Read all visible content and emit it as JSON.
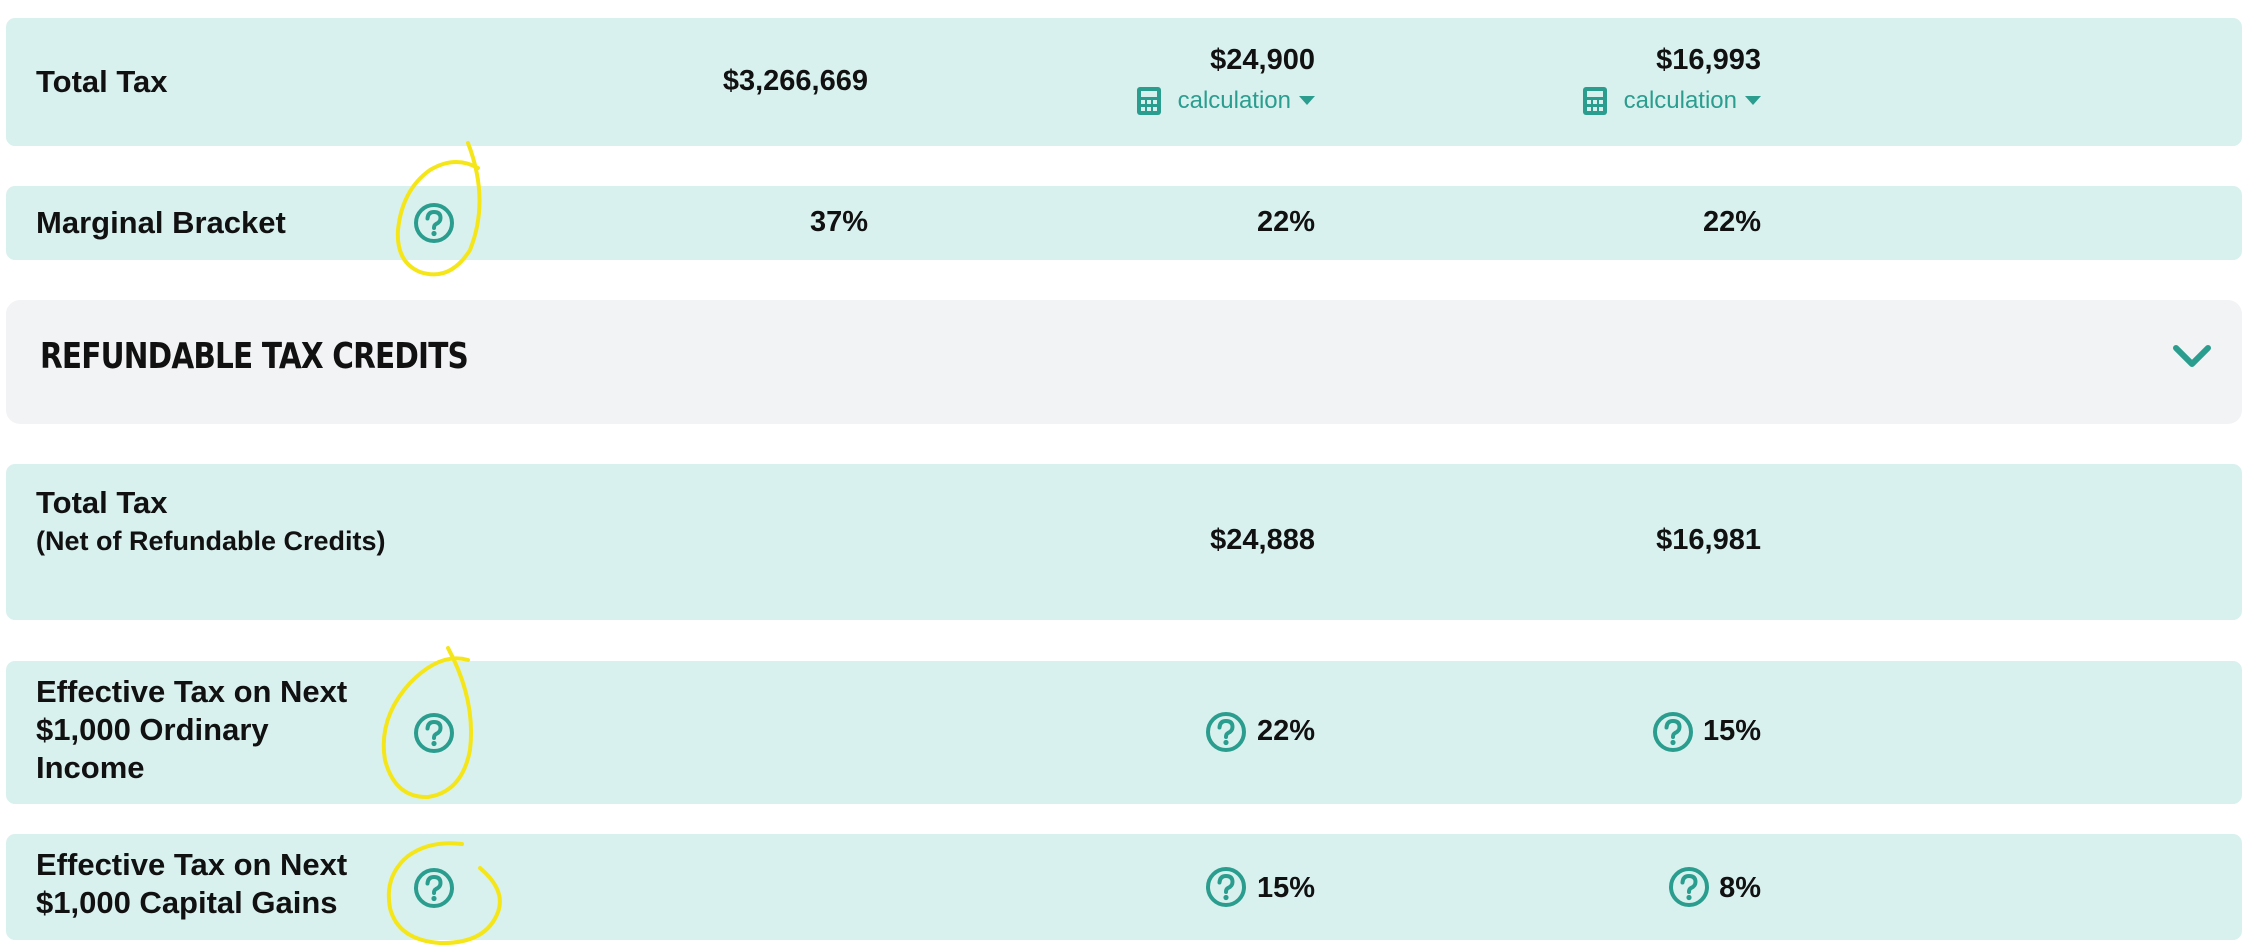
{
  "rows": [
    {
      "label": "Total Tax",
      "values": [
        "$3,266,669",
        "$24,900",
        "$16,993"
      ],
      "calc_label": "calculation"
    },
    {
      "label": "Marginal Bracket",
      "values": [
        "37%",
        "22%",
        "22%"
      ]
    }
  ],
  "section": {
    "title": "REFUNDABLE TAX CREDITS",
    "toggle_icon": "chevron-down-icon"
  },
  "net_row": {
    "label": "Total Tax",
    "sublabel": "(Net of Refundable Credits)",
    "values": [
      "$24,888",
      "$16,981"
    ]
  },
  "effective_rows": [
    {
      "label_lines": [
        "Effective Tax on Next",
        "$1,000 Ordinary",
        "Income"
      ],
      "values": [
        "22%",
        "15%"
      ]
    },
    {
      "label_lines": [
        "Effective Tax on Next",
        "$1,000 Capital Gains"
      ],
      "values": [
        "15%",
        "8%"
      ]
    }
  ],
  "colors": {
    "row_bg": "#d9f1ee",
    "section_bg": "#f2f3f5",
    "accent": "#2a9d8f",
    "annotation": "#f5e61a"
  },
  "icons": [
    "calculator-icon",
    "caret-down-icon",
    "help-circle-icon",
    "chevron-down-icon"
  ]
}
